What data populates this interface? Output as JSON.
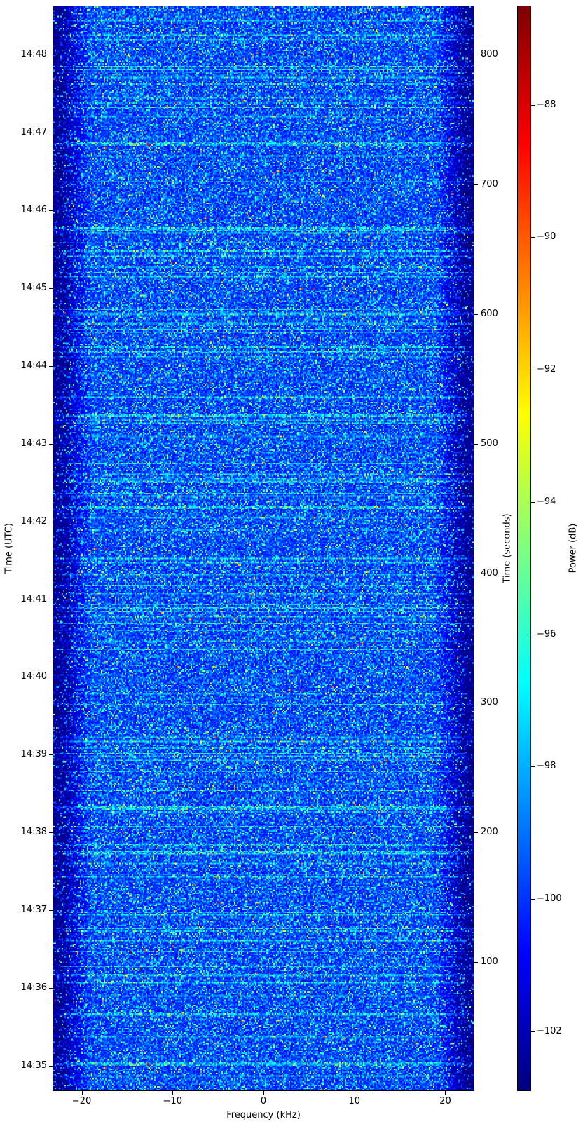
{
  "chart_data": {
    "type": "heatmap",
    "subtype": "spectrogram",
    "colormap": "jet",
    "xlabel": "Frequency (kHz)",
    "ylabel_left": "Time (UTC)",
    "ylabel_right": "Time (seconds)",
    "colorbar_label": "Power (dB)",
    "xlim": [
      -23.2,
      23.2
    ],
    "ylim_seconds": [
      0.5,
      838
    ],
    "start_time_utc": "14:34:40",
    "clim": [
      -102.9,
      -86.5
    ],
    "x_ticks": [
      -20,
      -10,
      0,
      10,
      20
    ],
    "x_tick_labels": [
      "−20",
      "−10",
      "0",
      "10",
      "20"
    ],
    "y_right_ticks": [
      100,
      200,
      300,
      400,
      500,
      600,
      700,
      800
    ],
    "y_left_ticks": [
      "14:35",
      "14:36",
      "14:37",
      "14:38",
      "14:39",
      "14:40",
      "14:41",
      "14:42",
      "14:43",
      "14:44",
      "14:45",
      "14:46",
      "14:47",
      "14:48"
    ],
    "colorbar_ticks": [
      -102,
      -100,
      -98,
      -96,
      -94,
      -92,
      -90,
      -88
    ],
    "colorbar_tick_labels": [
      "−102",
      "−100",
      "−98",
      "−96",
      "−94",
      "−92",
      "−90",
      "−88"
    ],
    "typical_power_db": [
      -101,
      -96
    ],
    "grid": false
  }
}
